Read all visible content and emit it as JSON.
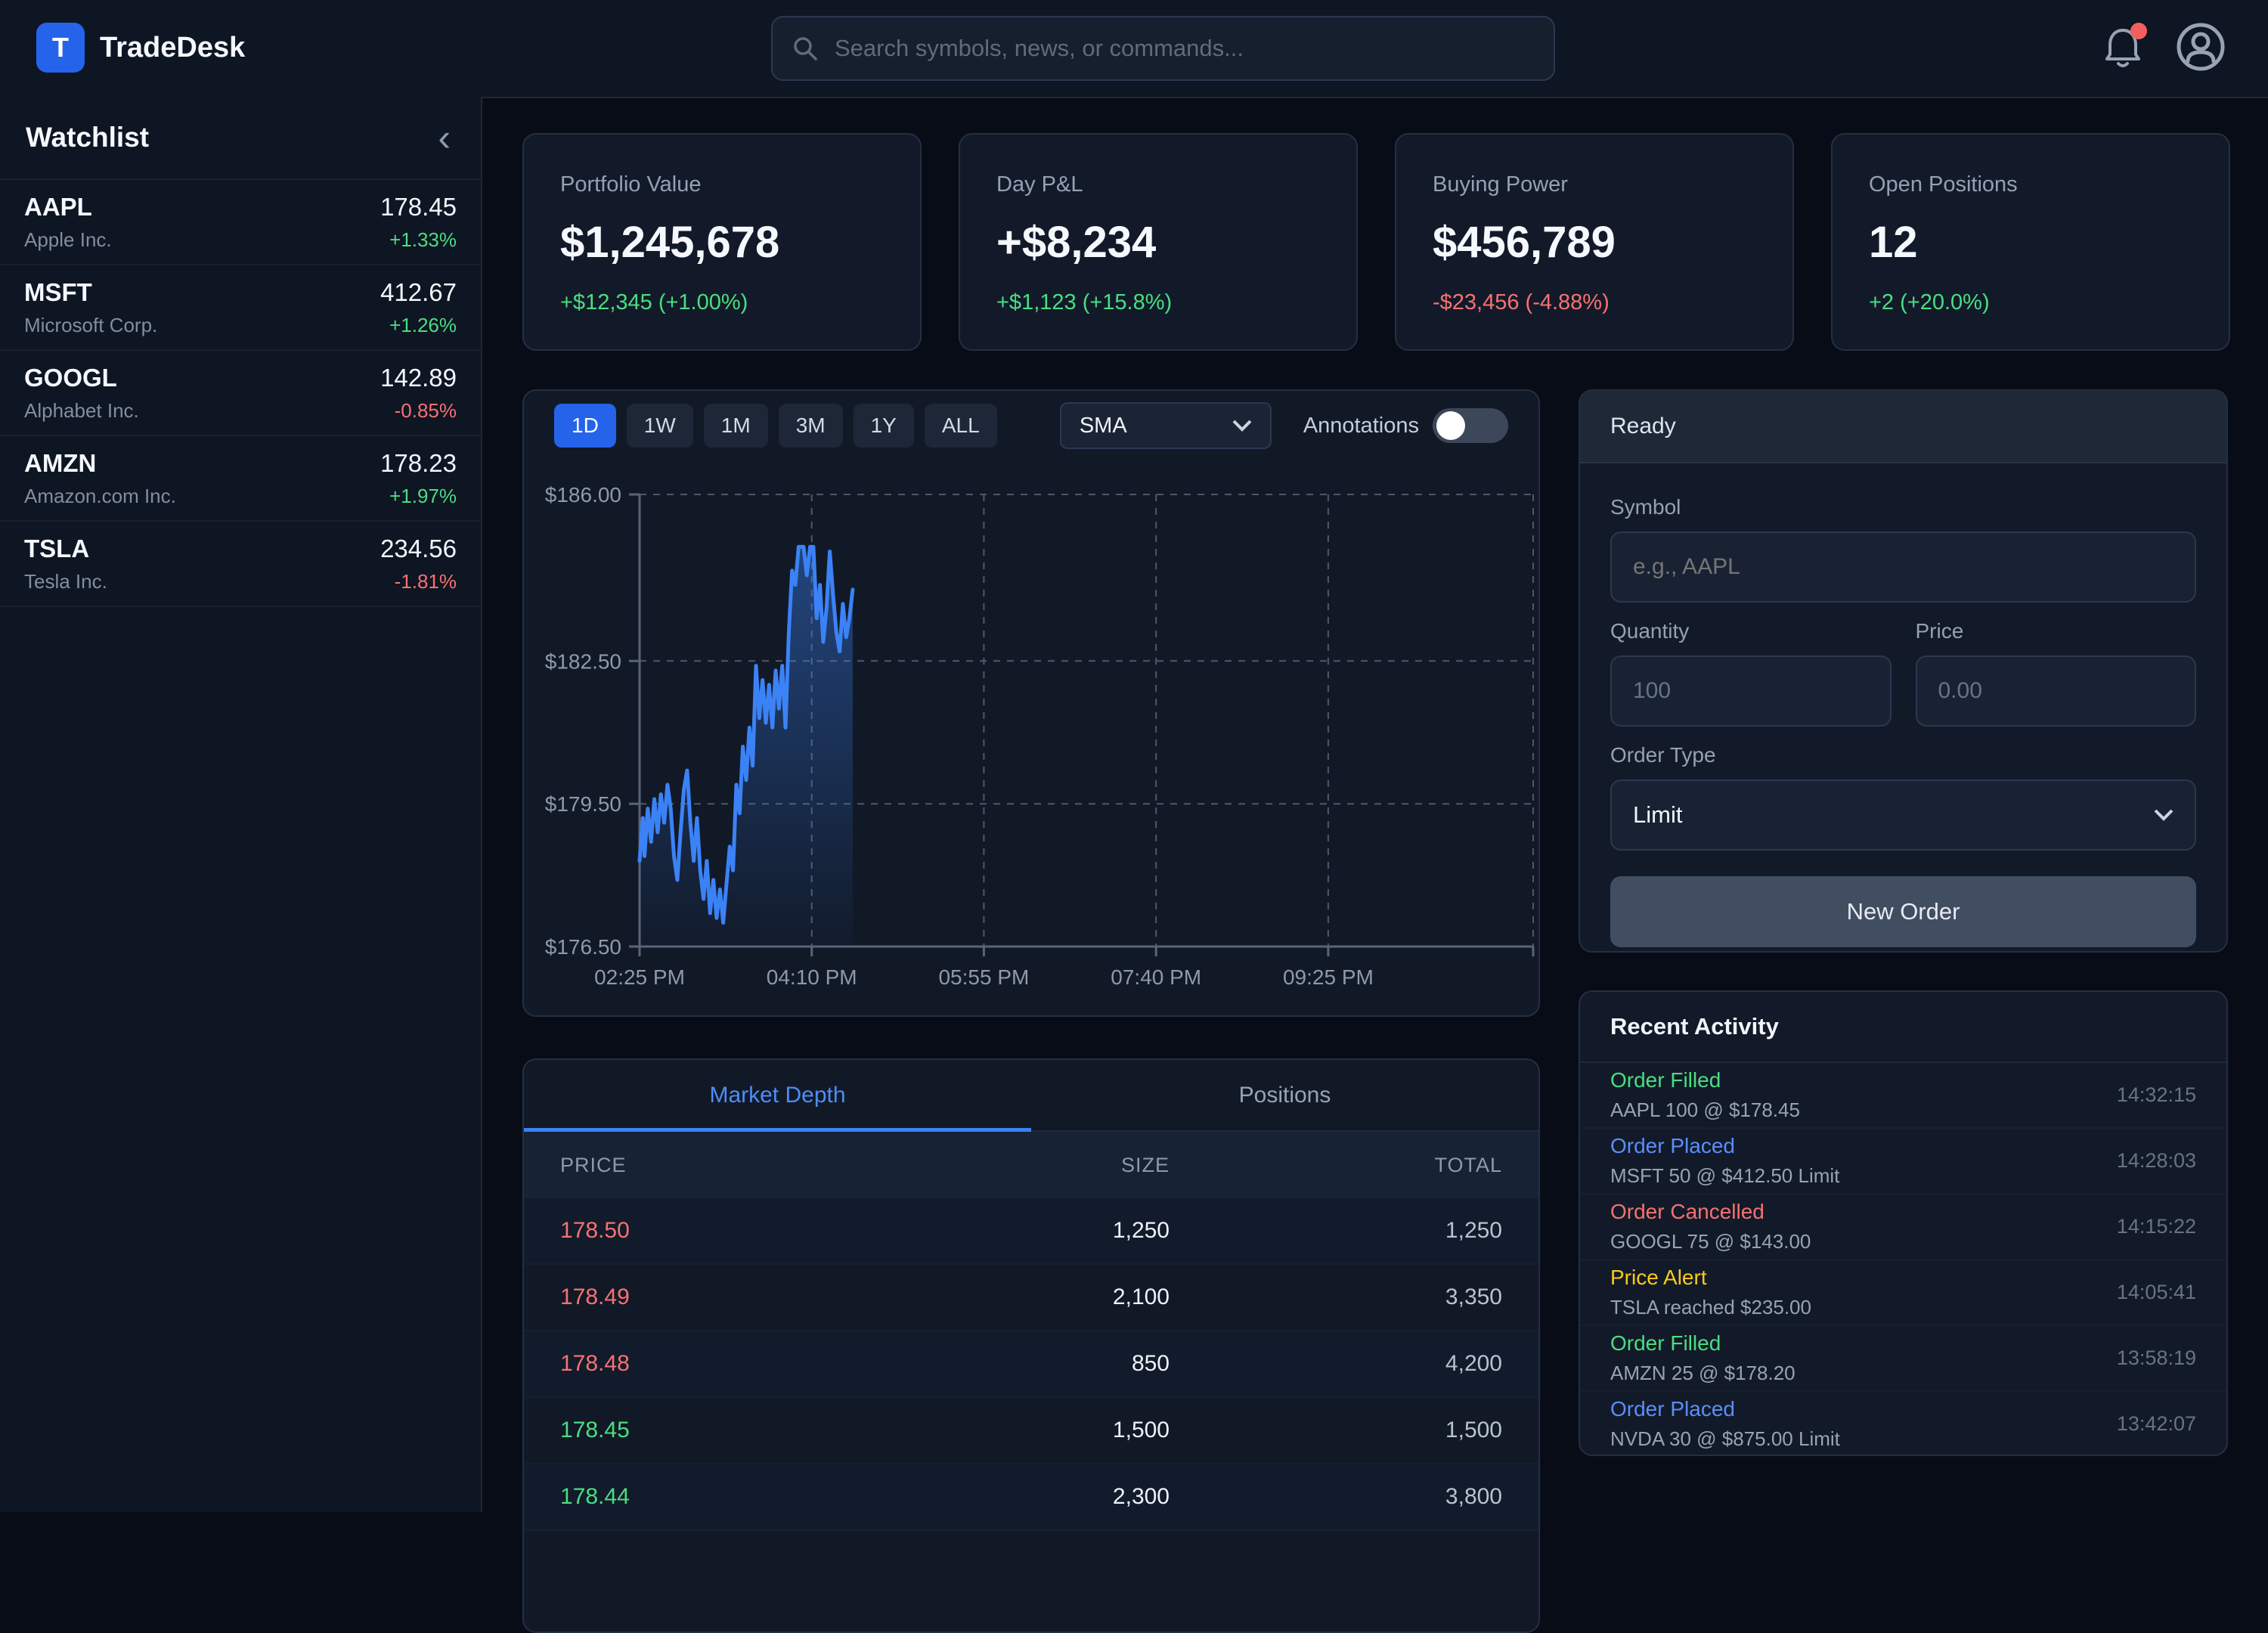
{
  "topbar": {
    "logo_letter": "T",
    "app_name": "TradeDesk",
    "search_placeholder": "Search symbols, news, or commands..."
  },
  "sidebar": {
    "title": "Watchlist",
    "collapse_icon": "‹",
    "items": [
      {
        "symbol": "AAPL",
        "name": "Apple Inc.",
        "price": "178.45",
        "change": "+1.33%",
        "dir": "up"
      },
      {
        "symbol": "MSFT",
        "name": "Microsoft Corp.",
        "price": "412.67",
        "change": "+1.26%",
        "dir": "up"
      },
      {
        "symbol": "GOOGL",
        "name": "Alphabet Inc.",
        "price": "142.89",
        "change": "-0.85%",
        "dir": "down"
      },
      {
        "symbol": "AMZN",
        "name": "Amazon.com Inc.",
        "price": "178.23",
        "change": "+1.97%",
        "dir": "up"
      },
      {
        "symbol": "TSLA",
        "name": "Tesla Inc.",
        "price": "234.56",
        "change": "-1.81%",
        "dir": "down"
      }
    ]
  },
  "stats": [
    {
      "label": "Portfolio Value",
      "value": "$1,245,678",
      "delta": "+$12,345 (+1.00%)",
      "dir": "up"
    },
    {
      "label": "Day P&L",
      "value": "+$8,234",
      "delta": "+$1,123 (+15.8%)",
      "dir": "up"
    },
    {
      "label": "Buying Power",
      "value": "$456,789",
      "delta": "-$23,456 (-4.88%)",
      "dir": "down"
    },
    {
      "label": "Open Positions",
      "value": "12",
      "delta": "+2 (+20.0%)",
      "dir": "up"
    }
  ],
  "chart": {
    "timeframes": [
      "1D",
      "1W",
      "1M",
      "3M",
      "1Y",
      "ALL"
    ],
    "active_timeframe": "1D",
    "indicator": "SMA",
    "annotations_label": "Annotations",
    "annotations_on": false
  },
  "chart_data": {
    "type": "line",
    "title": "Intraday price line with area fill",
    "x_tick_labels": [
      "02:25 PM",
      "04:10 PM",
      "05:55 PM",
      "07:40 PM",
      "09:25 PM"
    ],
    "x_tick_minutes": [
      0,
      105,
      210,
      315,
      420
    ],
    "x_domain_minutes": [
      0,
      545
    ],
    "y_tick_labels": [
      "$186.00",
      "$182.50",
      "$179.50",
      "$176.50"
    ],
    "y_ticks": [
      186.0,
      182.5,
      179.5,
      176.5
    ],
    "y_domain": [
      176.5,
      186.0
    ],
    "grid": "dashed",
    "legend": "none",
    "line_color": "#3b82f6",
    "fill_color": "#3b82f6",
    "series": [
      {
        "name": "price",
        "points": [
          [
            0,
            178.3
          ],
          [
            2,
            179.2
          ],
          [
            3,
            178.4
          ],
          [
            5,
            179.4
          ],
          [
            7,
            178.7
          ],
          [
            9,
            179.6
          ],
          [
            11,
            178.9
          ],
          [
            13,
            179.7
          ],
          [
            15,
            179.1
          ],
          [
            17,
            179.9
          ],
          [
            19,
            179.4
          ],
          [
            21,
            178.4
          ],
          [
            23,
            177.9
          ],
          [
            25,
            178.9
          ],
          [
            27,
            179.8
          ],
          [
            29,
            180.2
          ],
          [
            31,
            179.1
          ],
          [
            33,
            178.3
          ],
          [
            35,
            179.2
          ],
          [
            37,
            178.1
          ],
          [
            39,
            177.5
          ],
          [
            41,
            178.3
          ],
          [
            43,
            177.2
          ],
          [
            45,
            177.9
          ],
          [
            47,
            177.1
          ],
          [
            49,
            177.7
          ],
          [
            51,
            177.0
          ],
          [
            53,
            177.8
          ],
          [
            55,
            178.6
          ],
          [
            57,
            178.1
          ],
          [
            59,
            179.9
          ],
          [
            61,
            179.3
          ],
          [
            63,
            180.7
          ],
          [
            65,
            180.0
          ],
          [
            67,
            181.1
          ],
          [
            69,
            180.3
          ],
          [
            71,
            182.4
          ],
          [
            73,
            181.3
          ],
          [
            75,
            182.1
          ],
          [
            77,
            181.2
          ],
          [
            79,
            182.0
          ],
          [
            81,
            181.1
          ],
          [
            83,
            182.3
          ],
          [
            85,
            181.5
          ],
          [
            87,
            182.4
          ],
          [
            89,
            181.1
          ],
          [
            91,
            183.1
          ],
          [
            93,
            184.4
          ],
          [
            95,
            184.1
          ],
          [
            97,
            184.9
          ],
          [
            100,
            184.9
          ],
          [
            102,
            184.3
          ],
          [
            104,
            184.9
          ],
          [
            106,
            184.9
          ],
          [
            108,
            183.4
          ],
          [
            110,
            184.1
          ],
          [
            112,
            182.9
          ],
          [
            114,
            183.6
          ],
          [
            116,
            184.8
          ],
          [
            118,
            183.9
          ],
          [
            120,
            183.1
          ],
          [
            122,
            182.7
          ],
          [
            124,
            183.7
          ],
          [
            126,
            183.0
          ],
          [
            128,
            183.4
          ],
          [
            130,
            184.0
          ]
        ]
      }
    ]
  },
  "depth": {
    "tabs": [
      "Market Depth",
      "Positions"
    ],
    "active_tab": "Market Depth",
    "columns": [
      "PRICE",
      "SIZE",
      "TOTAL"
    ],
    "rows": [
      {
        "price": "178.50",
        "size": "1,250",
        "total": "1,250",
        "side": "ask"
      },
      {
        "price": "178.49",
        "size": "2,100",
        "total": "3,350",
        "side": "ask"
      },
      {
        "price": "178.48",
        "size": "850",
        "total": "4,200",
        "side": "ask"
      },
      {
        "price": "178.45",
        "size": "1,500",
        "total": "1,500",
        "side": "bid"
      },
      {
        "price": "178.44",
        "size": "2,300",
        "total": "3,800",
        "side": "bid"
      }
    ]
  },
  "order_form": {
    "status": "Ready",
    "symbol_label": "Symbol",
    "symbol_placeholder": "e.g., AAPL",
    "quantity_label": "Quantity",
    "quantity_value": "100",
    "price_label": "Price",
    "price_value": "0.00",
    "order_type_label": "Order Type",
    "order_type_value": "Limit",
    "submit_label": "New Order"
  },
  "activity": {
    "title": "Recent Activity",
    "items": [
      {
        "type": "Order Filled",
        "detail": "AAPL 100 @ $178.45",
        "time": "14:32:15",
        "color": "green"
      },
      {
        "type": "Order Placed",
        "detail": "MSFT 50 @ $412.50 Limit",
        "time": "14:28:03",
        "color": "blue"
      },
      {
        "type": "Order Cancelled",
        "detail": "GOOGL 75 @ $143.00",
        "time": "14:15:22",
        "color": "red"
      },
      {
        "type": "Price Alert",
        "detail": "TSLA reached $235.00",
        "time": "14:05:41",
        "color": "yellow"
      },
      {
        "type": "Order Filled",
        "detail": "AMZN 25 @ $178.20",
        "time": "13:58:19",
        "color": "green"
      },
      {
        "type": "Order Placed",
        "detail": "NVDA 30 @ $875.00 Limit",
        "time": "13:42:07",
        "color": "blue"
      }
    ]
  },
  "colors": {
    "accent_blue": "#2563eb",
    "line_blue": "#3b82f6",
    "up_green": "#4ade80",
    "down_red": "#f87171",
    "alert_yellow": "#facc15",
    "notification_red": "#f25f5f"
  }
}
